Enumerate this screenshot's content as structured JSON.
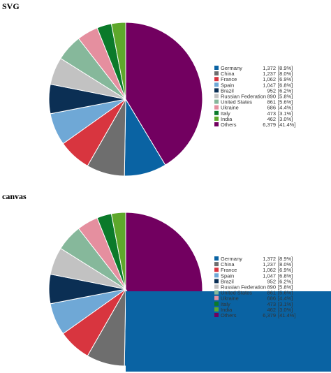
{
  "sections": [
    {
      "title": "SVG"
    },
    {
      "title": "canvas"
    }
  ],
  "chart_data": [
    {
      "type": "pie",
      "categories": [
        "Germany",
        "China",
        "France",
        "Spain",
        "Brazil",
        "Russian Federation",
        "United States",
        "Ukraine",
        "Italy",
        "India",
        "Others"
      ],
      "values": [
        1372,
        1237,
        1062,
        1047,
        952,
        890,
        861,
        686,
        473,
        462,
        6379
      ],
      "value_labels": [
        "1,372",
        "1,237",
        "1,062",
        "1,047",
        "952",
        "890",
        "861",
        "686",
        "473",
        "462",
        "6,379"
      ],
      "percent_labels": [
        "[8.9%]",
        "[8.0%]",
        "[6.9%]",
        "[6.8%]",
        "[6.2%]",
        "[5.8%]",
        "[5.6%]",
        "[4.4%]",
        "[3.1%]",
        "[3.0%]",
        "[41.4%]"
      ],
      "colors": [
        "#0a63a3",
        "#6e6e6e",
        "#d8353f",
        "#6fa8d6",
        "#0b2f54",
        "#c2c2c2",
        "#86b89b",
        "#e58f9f",
        "#0b7a2a",
        "#5ea82b",
        "#720060"
      ],
      "start_angle_deg": 0,
      "direction": "clockwise",
      "legend": "right"
    },
    {
      "type": "pie",
      "categories": [
        "Germany",
        "China",
        "France",
        "Spain",
        "Brazil",
        "Russian Federation",
        "United States",
        "Ukraine",
        "Italy",
        "India",
        "Others"
      ],
      "values": [
        1372,
        1237,
        1062,
        1047,
        952,
        890,
        861,
        686,
        473,
        462,
        6379
      ],
      "value_labels": [
        "1,372",
        "1,237",
        "1,062",
        "1,047",
        "952",
        "890",
        "861",
        "686",
        "473",
        "462",
        "6,379"
      ],
      "percent_labels": [
        "[8.9%]",
        "[8.0%]",
        "[6.9%]",
        "[6.8%]",
        "[6.2%]",
        "[5.8%]",
        "[5.6%]",
        "[4.4%]",
        "[3.1%]",
        "[3.0%]",
        "[41.4%]"
      ],
      "colors": [
        "#0a63a3",
        "#6e6e6e",
        "#d8353f",
        "#6fa8d6",
        "#0b2f54",
        "#c2c2c2",
        "#86b89b",
        "#e58f9f",
        "#0b7a2a",
        "#5ea82b",
        "#720060"
      ],
      "start_angle_deg": 0,
      "direction": "clockwise",
      "legend": "right",
      "highlight_color": "#0a63a3"
    }
  ]
}
